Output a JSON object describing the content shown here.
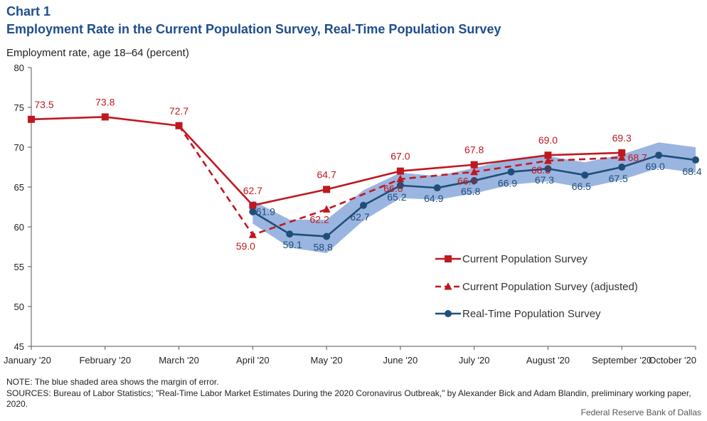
{
  "header": {
    "label": "Chart 1",
    "title": "Employment Rate in the Current Population Survey, Real-Time Population Survey"
  },
  "colors": {
    "cps": "#c0181f",
    "rps": "#1f4e79",
    "band": "#8aa8dc",
    "title": "#1f4e8c"
  },
  "chart_data": {
    "type": "line",
    "ylabel": "Employment rate, age 18–64 (percent)",
    "ylim": [
      45,
      80
    ],
    "yticks": [
      45,
      50,
      55,
      60,
      65,
      70,
      75,
      80
    ],
    "grid": false,
    "legend_position": "lower-right",
    "x_ticks": [
      {
        "x": 0,
        "label": "January '20"
      },
      {
        "x": 1,
        "label": "February '20"
      },
      {
        "x": 2,
        "label": "March '20"
      },
      {
        "x": 3,
        "label": "April '20"
      },
      {
        "x": 4,
        "label": "May '20"
      },
      {
        "x": 5,
        "label": "June '20"
      },
      {
        "x": 6,
        "label": "July '20"
      },
      {
        "x": 7,
        "label": "August '20"
      },
      {
        "x": 8,
        "label": "September '20"
      },
      {
        "x": 9,
        "label": "October '20"
      }
    ],
    "series": [
      {
        "name": "Current Population Survey",
        "style": "solid-square",
        "points": [
          {
            "x": 0,
            "y": 73.5,
            "label": "73.5"
          },
          {
            "x": 1,
            "y": 73.8,
            "label": "73.8"
          },
          {
            "x": 2,
            "y": 72.7,
            "label": "72.7"
          },
          {
            "x": 3,
            "y": 62.7,
            "label": "62.7"
          },
          {
            "x": 4,
            "y": 64.7,
            "label": "64.7"
          },
          {
            "x": 5,
            "y": 67.0,
            "label": "67.0"
          },
          {
            "x": 6,
            "y": 67.8,
            "label": "67.8"
          },
          {
            "x": 7,
            "y": 69.0,
            "label": "69.0"
          },
          {
            "x": 8,
            "y": 69.3,
            "label": "69.3"
          }
        ]
      },
      {
        "name": "Current Population Survey (adjusted)",
        "style": "dashed-triangle",
        "points": [
          {
            "x": 2,
            "y": 72.7,
            "marker": false
          },
          {
            "x": 3,
            "y": 59.0,
            "label": "59.0"
          },
          {
            "x": 4,
            "y": 62.2,
            "label": "62.2"
          },
          {
            "x": 5,
            "y": 66.0,
            "label": "66.0"
          },
          {
            "x": 6,
            "y": 66.9,
            "label": "66.9"
          },
          {
            "x": 7,
            "y": 68.3,
            "label": "68.3"
          },
          {
            "x": 8,
            "y": 68.7,
            "label": "68.7"
          }
        ]
      },
      {
        "name": "Real-Time Population Survey",
        "style": "solid-circle",
        "points": [
          {
            "x": 3.0,
            "y": 61.9,
            "label": "61.9"
          },
          {
            "x": 3.5,
            "y": 59.1,
            "label": "59.1"
          },
          {
            "x": 4.0,
            "y": 58.8,
            "label": "58.8"
          },
          {
            "x": 4.5,
            "y": 62.7,
            "label": "62.7"
          },
          {
            "x": 5.0,
            "y": 65.2,
            "label": "65.2"
          },
          {
            "x": 5.5,
            "y": 64.9,
            "label": "64.9"
          },
          {
            "x": 6.0,
            "y": 65.8,
            "label": "65.8"
          },
          {
            "x": 6.5,
            "y": 66.9,
            "label": "66.9"
          },
          {
            "x": 7.0,
            "y": 67.3,
            "label": "67.3"
          },
          {
            "x": 7.5,
            "y": 66.5,
            "label": "66.5"
          },
          {
            "x": 8.0,
            "y": 67.5,
            "label": "67.5"
          },
          {
            "x": 8.5,
            "y": 69.0,
            "label": "69.0"
          },
          {
            "x": 9.0,
            "y": 68.4,
            "label": "68.4"
          }
        ]
      }
    ],
    "margin_of_error_band": {
      "x": [
        3.0,
        3.5,
        4.0,
        4.5,
        5.0,
        5.5,
        6.0,
        6.5,
        7.0,
        7.5,
        8.0,
        8.5,
        9.0
      ],
      "upper": [
        63.3,
        60.9,
        60.9,
        64.6,
        66.8,
        66.4,
        67.4,
        68.5,
        68.9,
        68.1,
        69.1,
        70.6,
        70.0
      ],
      "lower": [
        60.4,
        57.4,
        56.7,
        60.8,
        63.6,
        63.4,
        64.2,
        65.3,
        65.7,
        64.9,
        65.9,
        67.4,
        66.8
      ]
    }
  },
  "footer": {
    "note": "NOTE: The blue shaded area shows the margin of error.",
    "sources": "SOURCES: Bureau of Labor Statistics; \"Real-Time Labor Market Estimates During the 2020 Coronavirus Outbreak,\" by Alexander Bick and Adam Blandin, preliminary working paper, 2020.",
    "credit": "Federal Reserve Bank of Dallas"
  }
}
